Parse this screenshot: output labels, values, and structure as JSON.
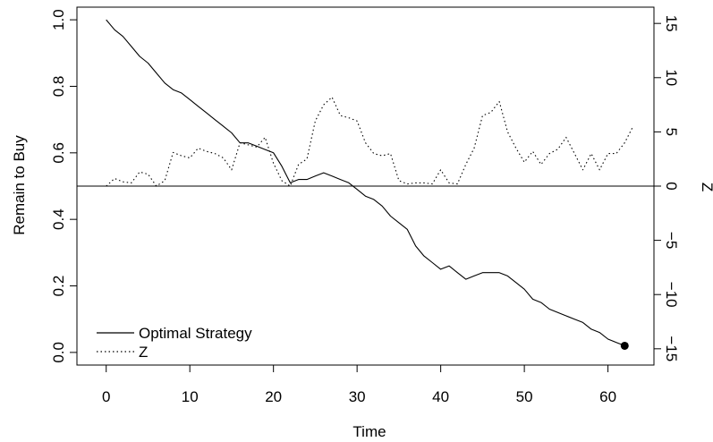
{
  "chart_data": {
    "type": "line",
    "title": "",
    "xlabel": "Time",
    "ylabel": "Remain to Buy",
    "ylabel_right": "Z",
    "xlim": [
      -3.5,
      65.5
    ],
    "ylim": [
      -0.038,
      1.038
    ],
    "ylim_right": [
      -16.5,
      16.5
    ],
    "x_ticks": [
      0,
      10,
      20,
      30,
      40,
      50,
      60
    ],
    "x_tick_labels": [
      "0",
      "10",
      "20",
      "30",
      "40",
      "50",
      "60"
    ],
    "y_ticks": [
      0.0,
      0.2,
      0.4,
      0.6,
      0.8,
      1.0
    ],
    "y_tick_labels": [
      "0.0",
      "0.2",
      "0.4",
      "0.6",
      "0.8",
      "1.0"
    ],
    "y_ticks_right": [
      -15,
      -10,
      -5,
      0,
      5,
      10,
      15
    ],
    "y_tick_labels_right": [
      "−15",
      "−10",
      "−5",
      "0",
      "5",
      "10",
      "15"
    ],
    "reference_line": {
      "axis": "right",
      "value": 0
    },
    "grid": false,
    "legend_position": "bottom-left",
    "legend": [
      {
        "label": "Optimal Strategy",
        "style": "solid"
      },
      {
        "label": "Z",
        "style": "dotted"
      }
    ],
    "series": [
      {
        "name": "Optimal Strategy",
        "axis": "left",
        "style": "solid",
        "end_marker": "filled-circle",
        "x": [
          0,
          1,
          2,
          3,
          4,
          5,
          6,
          7,
          8,
          9,
          10,
          11,
          12,
          13,
          14,
          15,
          16,
          17,
          18,
          19,
          20,
          21,
          22,
          23,
          24,
          25,
          26,
          27,
          28,
          29,
          30,
          31,
          32,
          33,
          34,
          35,
          36,
          37,
          38,
          39,
          40,
          41,
          42,
          43,
          44,
          45,
          46,
          47,
          48,
          49,
          50,
          51,
          52,
          53,
          54,
          55,
          56,
          57,
          58,
          59,
          60,
          61,
          62
        ],
        "y": [
          1.0,
          0.97,
          0.95,
          0.92,
          0.89,
          0.87,
          0.84,
          0.81,
          0.79,
          0.78,
          0.76,
          0.74,
          0.72,
          0.7,
          0.68,
          0.66,
          0.63,
          0.63,
          0.62,
          0.61,
          0.6,
          0.56,
          0.51,
          0.52,
          0.52,
          0.53,
          0.54,
          0.53,
          0.52,
          0.51,
          0.49,
          0.47,
          0.46,
          0.44,
          0.41,
          0.39,
          0.37,
          0.32,
          0.29,
          0.27,
          0.25,
          0.26,
          0.24,
          0.22,
          0.23,
          0.24,
          0.24,
          0.24,
          0.23,
          0.21,
          0.19,
          0.16,
          0.15,
          0.13,
          0.12,
          0.11,
          0.1,
          0.09,
          0.07,
          0.06,
          0.04,
          0.03,
          0.02
        ]
      },
      {
        "name": "Z",
        "axis": "right",
        "style": "dotted",
        "x": [
          0,
          1,
          2,
          3,
          4,
          5,
          6,
          7,
          8,
          9,
          10,
          11,
          12,
          13,
          14,
          15,
          16,
          17,
          18,
          19,
          20,
          21,
          22,
          23,
          24,
          25,
          26,
          27,
          28,
          29,
          30,
          31,
          32,
          33,
          34,
          35,
          36,
          37,
          38,
          39,
          40,
          41,
          42,
          43,
          44,
          45,
          46,
          47,
          48,
          49,
          50,
          51,
          52,
          53,
          54,
          55,
          56,
          57,
          58,
          59,
          60,
          61,
          62,
          63
        ],
        "y": [
          0,
          0.7,
          0.4,
          0.3,
          1.3,
          1.1,
          0,
          0.5,
          3.1,
          2.8,
          2.6,
          3.5,
          3.2,
          3.0,
          2.6,
          1.5,
          4.0,
          3.8,
          3.6,
          4.5,
          2.1,
          0.5,
          0,
          2.0,
          2.5,
          6.0,
          7.5,
          8.2,
          6.5,
          6.3,
          6.0,
          4.0,
          3.0,
          2.8,
          3.0,
          0.5,
          0.2,
          0.3,
          0.3,
          0.2,
          1.5,
          0.3,
          0.2,
          2.0,
          3.5,
          6.5,
          6.8,
          7.8,
          5.0,
          3.5,
          2.2,
          3.2,
          2.0,
          3.0,
          3.4,
          4.5,
          3.0,
          1.5,
          3.0,
          1.5,
          3.0,
          3.0,
          4.0,
          5.5
        ]
      }
    ]
  }
}
